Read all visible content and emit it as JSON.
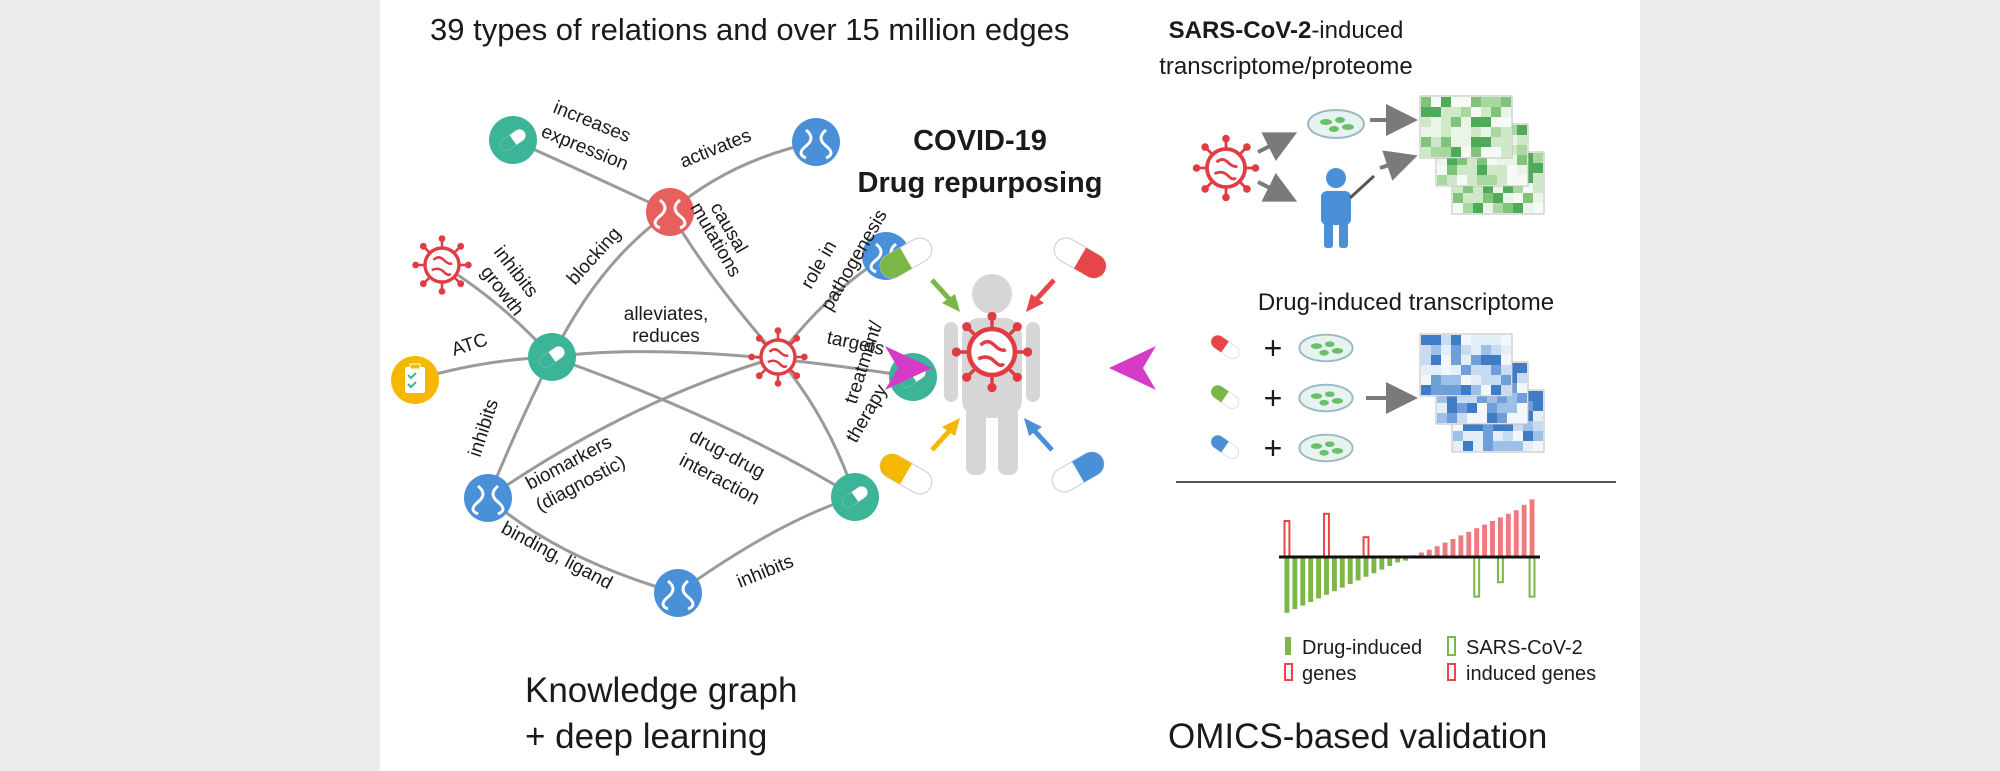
{
  "header": {
    "relations_title": "39 types of relations and over 15 million edges",
    "sars_bold": "SARS-CoV-2",
    "sars_suffix": "-induced",
    "sars_line2": "transcriptome/proteome"
  },
  "center": {
    "title_line1": "COVID-19",
    "title_line2": "Drug repurposing"
  },
  "graph": {
    "edge_labels": {
      "increases_expression_1": "increases",
      "increases_expression_2": "expression",
      "activates": "activates",
      "blocking": "blocking",
      "causal_mutations_1": "causal",
      "causal_mutations_2": "mutations",
      "role_in_pathogenesis_1": "role in",
      "role_in_pathogenesis_2": "pathogenesis",
      "inhibits_growth_1": "inhibits",
      "inhibits_growth_2": "growth",
      "alleviates_reduces_1": "alleviates,",
      "alleviates_reduces_2": "reduces",
      "targets": "targets",
      "atc": "ATC",
      "inhibits_left": "inhibits",
      "treatment_therapy_1": "treatment/",
      "treatment_therapy_2": "therapy",
      "biomarkers_1": "biomarkers",
      "biomarkers_2": "(diagnostic)",
      "drug_drug_1": "drug-drug",
      "drug_drug_2": "interaction",
      "binding_ligand": "binding, ligand",
      "inhibits_bottom": "inhibits"
    }
  },
  "panels": {
    "drug_induced_title": "Drug-induced transcriptome",
    "plus_sign": "+"
  },
  "legend": {
    "drug_induced_line1": "Drug-induced",
    "drug_induced_line2": "genes",
    "sars_line1": "SARS-CoV-2",
    "sars_line2": "induced genes"
  },
  "footer": {
    "kg_line1": "Knowledge graph",
    "kg_line2": "+ deep learning",
    "omics": "OMICS-based validation"
  },
  "colors": {
    "teal": "#3bb497",
    "blue": "#4a90d9",
    "red": "#e8454a",
    "green": "#7ab648",
    "yellow": "#f5b800",
    "magenta": "#d63bc8",
    "gray_edge": "#9a9a9a",
    "body_gray": "#d6d6d6"
  },
  "chart_data": {
    "type": "bar",
    "series": [
      {
        "name": "Drug-induced genes",
        "values": [
          -62,
          -58,
          -54,
          -50,
          -46,
          -42,
          -38,
          -34,
          -30,
          -26,
          -22,
          -18,
          -14,
          -10,
          -6,
          -4,
          2,
          5,
          8,
          12,
          16,
          20,
          24,
          28,
          32,
          36,
          40,
          44,
          48,
          52,
          58,
          64
        ]
      },
      {
        "name": "SARS-CoV-2 induced genes",
        "values": [
          40,
          0,
          0,
          0,
          0,
          48,
          0,
          0,
          0,
          0,
          22,
          0,
          0,
          0,
          0,
          0,
          0,
          0,
          0,
          0,
          0,
          0,
          0,
          0,
          -44,
          0,
          0,
          -28,
          0,
          0,
          0,
          -44
        ]
      }
    ]
  }
}
